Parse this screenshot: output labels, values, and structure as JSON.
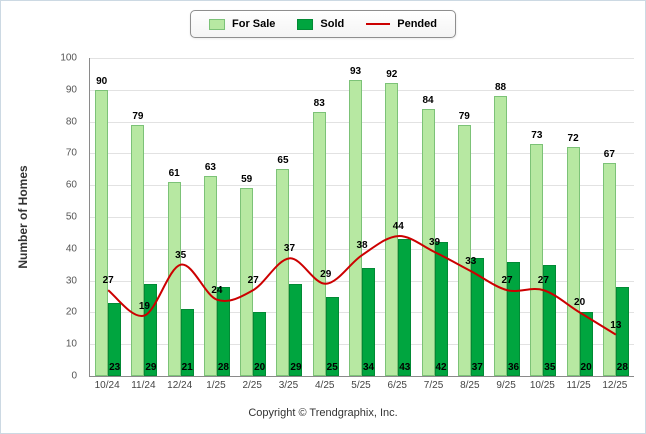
{
  "chart_data": {
    "type": "bar",
    "title": "",
    "categories": [
      "10/24",
      "11/24",
      "12/24",
      "1/25",
      "2/25",
      "3/25",
      "4/25",
      "5/25",
      "6/25",
      "7/25",
      "8/25",
      "9/25",
      "10/25",
      "11/25",
      "12/25"
    ],
    "series": [
      {
        "name": "For Sale",
        "type": "bar",
        "color": "#b7e8a2",
        "border": "#7cc277",
        "values": [
          90,
          79,
          61,
          63,
          59,
          65,
          83,
          93,
          92,
          84,
          79,
          88,
          73,
          72,
          67
        ]
      },
      {
        "name": "Sold",
        "type": "bar",
        "color": "#00a53f",
        "border": "#028a35",
        "values": [
          23,
          29,
          21,
          28,
          20,
          29,
          25,
          34,
          43,
          42,
          37,
          36,
          35,
          20,
          28
        ]
      },
      {
        "name": "Pended",
        "type": "line",
        "color": "#cc0000",
        "values": [
          27,
          19,
          35,
          24,
          27,
          37,
          29,
          38,
          44,
          39,
          33,
          27,
          27,
          20,
          13
        ]
      }
    ],
    "xlabel": "",
    "ylabel": "Number of Homes",
    "ylim": [
      0,
      100
    ],
    "ytick_step": 10,
    "grid": true,
    "legend_position": "top"
  },
  "footer": {
    "copyright": "Copyright © Trendgraphix, Inc."
  }
}
